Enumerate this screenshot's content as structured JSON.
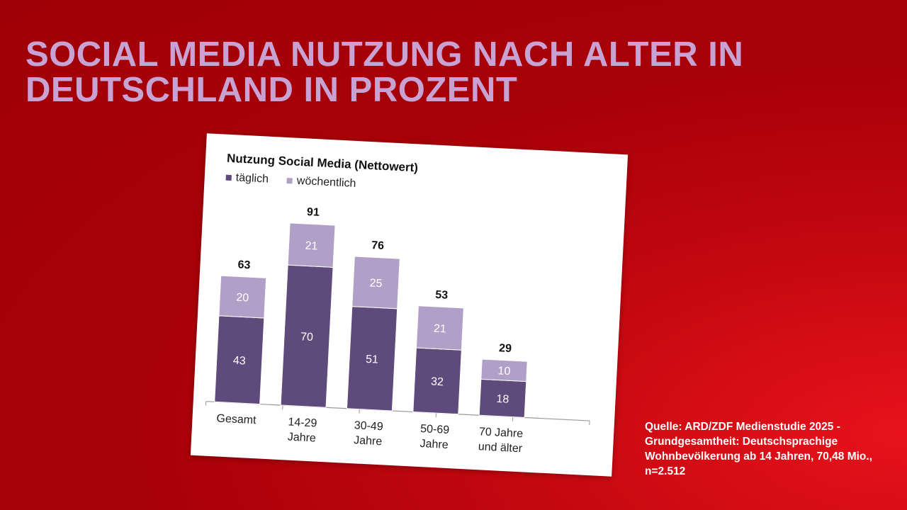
{
  "slide": {
    "title_lines": [
      "SOCIAL MEDIA NUTZUNG NACH ALTER IN",
      "DEUTSCHLAND IN PROZENT"
    ],
    "source": "Quelle: ARD/ZDF Medienstudie 2025 - Grundgesamtheit: Deutschsprachige Wohnbevölkerung ab 14 Jahren, 70,48 Mio., n=2.512"
  },
  "chart_data": {
    "type": "bar",
    "stacked": true,
    "title": "Nutzung Social Media (Nettowert)",
    "categories": [
      [
        "Gesamt"
      ],
      [
        "14-29",
        "Jahre"
      ],
      [
        "30-49",
        "Jahre"
      ],
      [
        "50-69",
        "Jahre"
      ],
      [
        "70 Jahre",
        "und älter"
      ]
    ],
    "series": [
      {
        "name": "täglich",
        "values": [
          43,
          70,
          51,
          32,
          18
        ],
        "color": "#5f4a7c"
      },
      {
        "name": "wöchentlich",
        "values": [
          20,
          21,
          25,
          21,
          10
        ],
        "color": "#b09fc7"
      }
    ],
    "totals": [
      63,
      91,
      76,
      53,
      29
    ],
    "legend": "top-left",
    "grid": false,
    "ylim": [
      0,
      100
    ]
  }
}
